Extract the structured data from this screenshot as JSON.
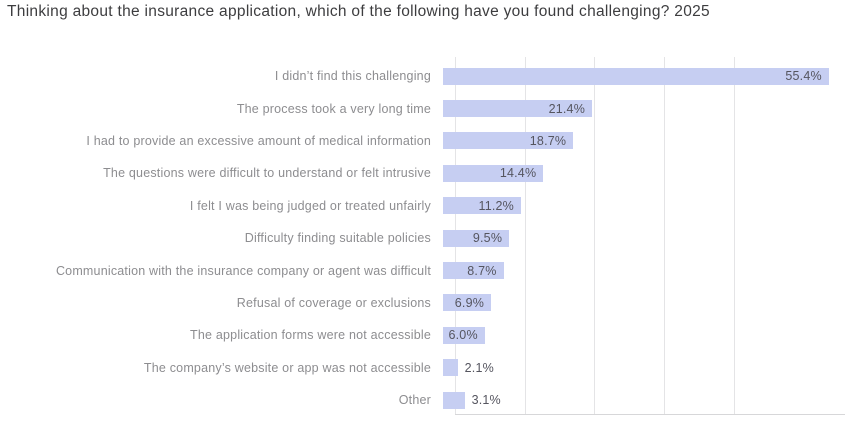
{
  "title": "Thinking about the insurance application, which of the following have you found challenging? 2025",
  "chart_data": {
    "type": "bar",
    "orientation": "horizontal",
    "title": "Thinking about the insurance application, which of the following have you found challenging? 2025",
    "xlabel": "",
    "ylabel": "",
    "categories": [
      "I didn’t find this challenging",
      "The process took a very long time",
      "I had to provide an excessive amount of medical information",
      "The questions were difficult to understand or felt intrusive",
      "I felt I was being judged or treated unfairly",
      "Difficulty finding suitable policies",
      "Communication with the insurance company or agent was difficult",
      "Refusal of coverage or exclusions",
      "The application forms were not accessible",
      "The company’s website or app was not accessible",
      "Other"
    ],
    "values": [
      55.4,
      21.4,
      18.7,
      14.4,
      11.2,
      9.5,
      8.7,
      6.9,
      6.0,
      2.1,
      3.1
    ],
    "value_labels": [
      "55.4%",
      "21.4%",
      "18.7%",
      "14.4%",
      "11.2%",
      "9.5%",
      "8.7%",
      "6.9%",
      "6.0%",
      "2.1%",
      "3.1%"
    ],
    "xlim": [
      0,
      56
    ],
    "gridline_step": 10,
    "grid": "vertical",
    "legend": "none",
    "colors": {
      "bar": "#c6cef2",
      "gridline": "#e4e4e6",
      "axis_line": "#d7d7d9",
      "title_text": "#3d3d3f",
      "category_text": "#8d8d90",
      "value_text": "#55555f",
      "background": "#ffffff"
    }
  }
}
